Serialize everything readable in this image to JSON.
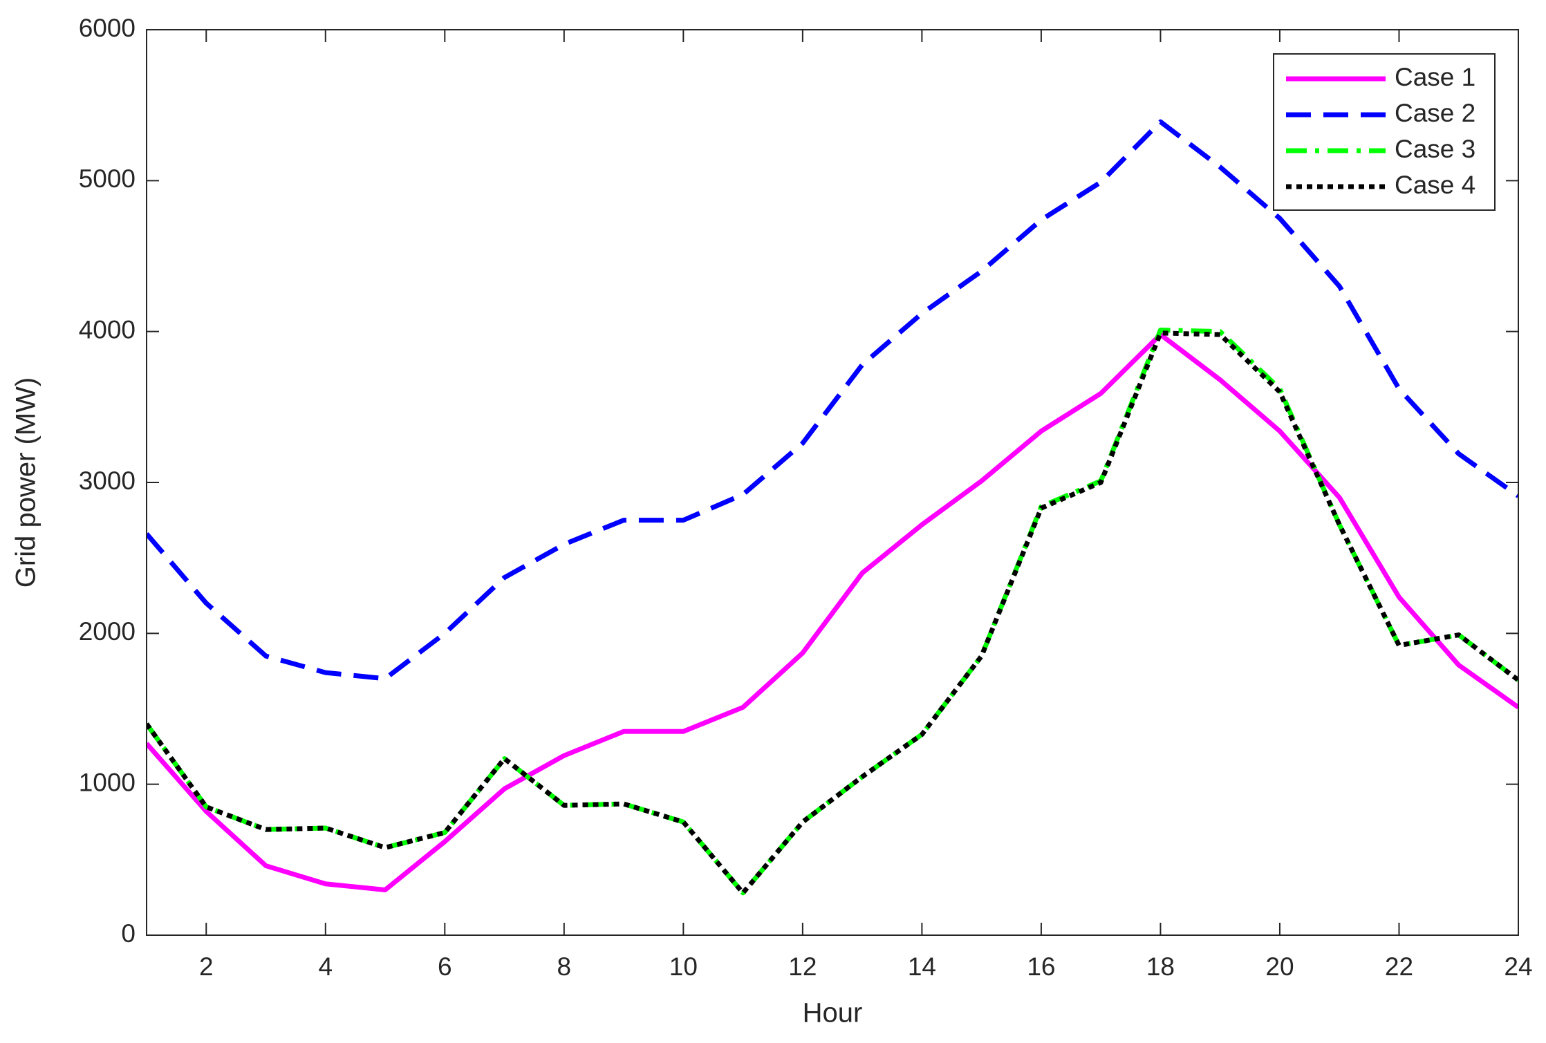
{
  "chart_data": {
    "type": "line",
    "x_label": "Hour",
    "y_label": "Grid power (MW)",
    "x": [
      1,
      2,
      3,
      4,
      5,
      6,
      7,
      8,
      9,
      10,
      11,
      12,
      13,
      14,
      15,
      16,
      17,
      18,
      19,
      20,
      21,
      22,
      23,
      24
    ],
    "series": [
      {
        "name": "Case 1",
        "color": "#ff00ff",
        "dash": "solid",
        "values": [
          1270,
          820,
          460,
          340,
          300,
          620,
          970,
          1190,
          1350,
          1350,
          1510,
          1870,
          2400,
          2720,
          3010,
          3340,
          3590,
          3980,
          3680,
          3340,
          2900,
          2240,
          1790,
          1510
        ]
      },
      {
        "name": "Case 2",
        "color": "#0000ff",
        "dash": "dashed",
        "values": [
          2660,
          2200,
          1850,
          1740,
          1700,
          2000,
          2370,
          2590,
          2750,
          2750,
          2920,
          3260,
          3780,
          4120,
          4400,
          4740,
          4990,
          5390,
          5090,
          4750,
          4300,
          3620,
          3190,
          2910
        ]
      },
      {
        "name": "Case 3",
        "color": "#00ff00",
        "dash": "dashdot",
        "values": [
          1400,
          850,
          700,
          710,
          580,
          680,
          1170,
          860,
          870,
          750,
          280,
          750,
          1050,
          1330,
          1850,
          2840,
          3010,
          4010,
          4000,
          3620,
          2720,
          1920,
          1990,
          1690
        ]
      },
      {
        "name": "Case 4",
        "color": "#000000",
        "dash": "dotted",
        "values": [
          1400,
          850,
          700,
          710,
          580,
          680,
          1170,
          860,
          870,
          750,
          280,
          750,
          1050,
          1330,
          1850,
          2830,
          3000,
          3990,
          3980,
          3600,
          2720,
          1920,
          1990,
          1690
        ]
      }
    ],
    "xlim": [
      1,
      24
    ],
    "xticks": [
      2,
      4,
      6,
      8,
      10,
      12,
      14,
      16,
      18,
      20,
      22,
      24
    ],
    "ylim": [
      0,
      6000
    ],
    "yticks": [
      0,
      1000,
      2000,
      3000,
      4000,
      5000,
      6000
    ],
    "legend": "upper right",
    "grid": false
  }
}
